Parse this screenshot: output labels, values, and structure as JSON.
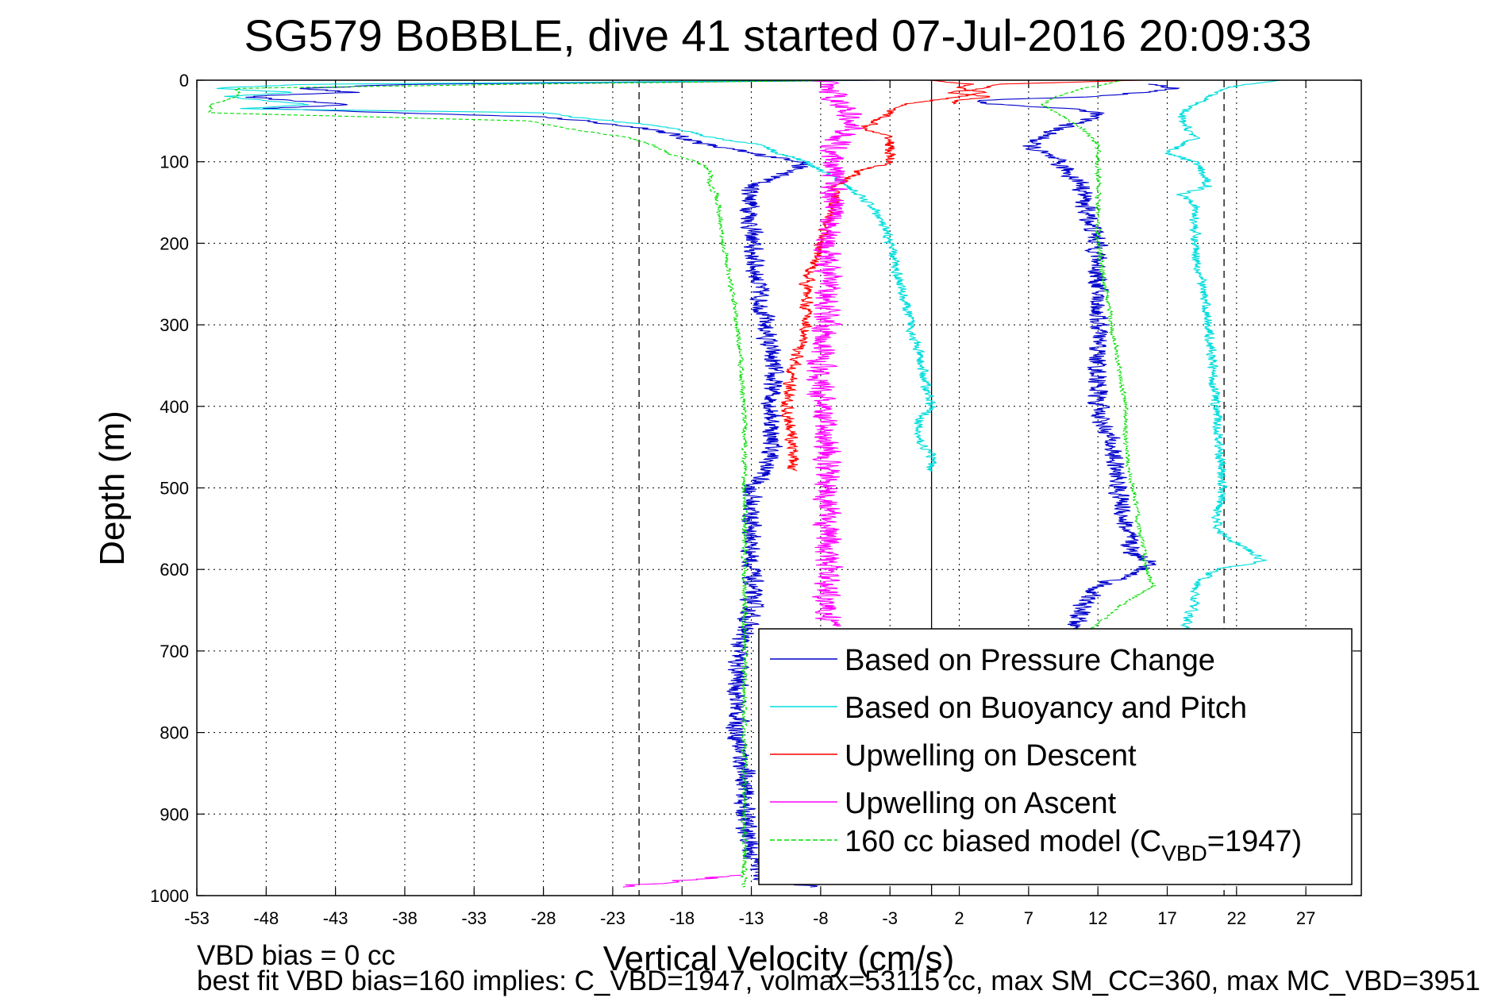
{
  "chart_data": {
    "type": "line",
    "title": "SG579 BoBBLE, dive 41 started 07-Jul-2016 20:09:33",
    "xlabel": "Vertical Velocity (cm/s)",
    "ylabel": "Depth (m)",
    "xlim": [
      -53,
      31
    ],
    "ylim": [
      0,
      1000
    ],
    "y_reversed": true,
    "grid": true,
    "x_ticks": [
      -53,
      -48,
      -43,
      -38,
      -33,
      -28,
      -23,
      -18,
      -13,
      -8,
      -3,
      2,
      7,
      12,
      17,
      22,
      27
    ],
    "y_ticks": [
      0,
      100,
      200,
      300,
      400,
      500,
      600,
      700,
      800,
      900,
      1000
    ],
    "reference_lines": [
      {
        "x": -21.1,
        "style": "dashed",
        "color": "#000000"
      },
      {
        "x": 0,
        "style": "solid",
        "color": "#000000"
      },
      {
        "x": 21.1,
        "style": "dashed",
        "color": "#000000"
      }
    ],
    "legend_position": "bottom-right",
    "series": [
      {
        "name": "Based on Pressure Change",
        "color": "#0000cc",
        "style": "solid",
        "noise": 1.0,
        "segments": [
          {
            "depth": [
              0,
              5,
              10,
              15,
              20,
              25,
              30,
              35,
              45,
              60,
              70,
              80,
              90,
              100,
              110,
              130,
              150,
              200,
              250,
              300,
              350,
              400,
              450,
              480,
              500,
              550,
              600,
              650,
              700,
              750,
              800,
              850,
              900,
              950,
              980,
              990
            ],
            "v": [
              -3,
              -38,
              -45,
              -42,
              -50,
              -46,
              -42,
              -48,
              -28,
              -20,
              -18,
              -16,
              -13,
              -9,
              -10,
              -13,
              -13,
              -13,
              -12.5,
              -12,
              -11.5,
              -11.5,
              -11.5,
              -12,
              -13,
              -13,
              -13,
              -13,
              -14,
              -14,
              -14,
              -13.5,
              -13.5,
              -13,
              -12,
              -8
            ]
          },
          {
            "depth": [
              5,
              10,
              20,
              25,
              30,
              35,
              40,
              50,
              60,
              70,
              80,
              90,
              100,
              130,
              150,
              200,
              300,
              400,
              450,
              500,
              550,
              580,
              590,
              600,
              610,
              620,
              640,
              660,
              680
            ],
            "v": [
              16,
              18,
              12,
              3,
              5,
              10,
              12,
              11,
              9,
              8,
              7,
              8,
              9,
              11,
              11,
              12,
              12,
              12,
              13,
              13.5,
              14,
              14.5,
              16,
              15,
              14,
              12,
              11,
              10.5,
              10
            ]
          }
        ]
      },
      {
        "name": "Based on Buoyancy and Pitch",
        "color": "#00dddd",
        "style": "solid",
        "noise": 0.5,
        "segments": [
          {
            "depth": [
              0,
              5,
              10,
              15,
              20,
              25,
              30,
              35,
              40,
              45,
              50,
              60,
              70,
              80,
              90,
              100,
              130,
              160,
              200,
              300,
              400,
              420,
              440,
              460,
              480
            ],
            "v": [
              -5,
              -45,
              -52,
              -46,
              -51,
              -48,
              -45,
              -50,
              -28,
              -26,
              -23,
              -18,
              -16,
              -12,
              -11,
              -9,
              -6,
              -4,
              -3,
              -1.5,
              0,
              -1,
              -1,
              0,
              0
            ]
          },
          {
            "depth": [
              0,
              10,
              20,
              30,
              40,
              50,
              70,
              80,
              90,
              100,
              130,
              140,
              150,
              200,
              300,
              400,
              500,
              550,
              590,
              600,
              620,
              640,
              660,
              680
            ],
            "v": [
              25,
              21,
              20,
              19,
              18,
              18,
              19,
              18,
              17,
              19,
              20,
              18,
              19,
              19,
              20,
              20.5,
              21,
              20.5,
              24,
              20.5,
              19,
              19,
              18.5,
              18
            ]
          }
        ]
      },
      {
        "name": "Upwelling on Descent",
        "color": "#ff0000",
        "style": "solid",
        "noise": 0.6,
        "segments": [
          {
            "depth": [
              0,
              5,
              10,
              15,
              20,
              30,
              40,
              50,
              60,
              70,
              80,
              90,
              100,
              110,
              130,
              150,
              200,
              250,
              300,
              350,
              400,
              450,
              480
            ],
            "v": [
              0,
              3,
              2,
              4,
              2,
              -2,
              -3,
              -4,
              -5,
              -3,
              -3,
              -3,
              -3,
              -5,
              -7,
              -7,
              -8,
              -9,
              -9,
              -10,
              -10.5,
              -10,
              -10
            ]
          },
          {
            "depth": [
              0,
              5,
              10,
              15,
              20,
              25,
              30
            ],
            "v": [
              15,
              5,
              4,
              1,
              4,
              2,
              1
            ]
          }
        ]
      },
      {
        "name": "Upwelling on Ascent",
        "color": "#ff00ff",
        "style": "solid",
        "noise": 1.3,
        "segments": [
          {
            "depth": [
              0,
              20,
              40,
              60,
              80,
              100,
              120,
              150,
              200,
              250,
              300,
              350,
              400,
              450,
              500,
              550,
              600,
              650,
              670
            ],
            "v": [
              -8,
              -7,
              -6,
              -6,
              -7,
              -7,
              -7,
              -7,
              -7.5,
              -7.5,
              -7.5,
              -8,
              -8,
              -7.5,
              -7.5,
              -7.5,
              -7.5,
              -7.5,
              -7.5
            ]
          },
          {
            "depth": [
              975,
              980,
              985,
              990
            ],
            "v": [
              -13,
              -17,
              -20,
              -23
            ]
          }
        ]
      },
      {
        "name": "160 cc biased model (CVBD=1947)",
        "legend_label_main": "160 cc biased model (C",
        "legend_label_sub": "VBD",
        "legend_label_end": "=1947)",
        "color": "#00dd00",
        "style": "dashed",
        "noise": 0.25,
        "segments": [
          {
            "depth": [
              0,
              5,
              10,
              20,
              30,
              40,
              50,
              60,
              70,
              80,
              90,
              100,
              110,
              130,
              140,
              200,
              300,
              400,
              480,
              500,
              600,
              650,
              700,
              800,
              900,
              990
            ],
            "v": [
              -5,
              -30,
              -50,
              -50,
              -52,
              -52,
              -29,
              -26,
              -22,
              -20,
              -19,
              -17,
              -16,
              -16,
              -15.5,
              -15,
              -14,
              -13.5,
              -13.5,
              -13.5,
              -13.5,
              -13.5,
              -13.5,
              -13.5,
              -13.5,
              -13.5
            ]
          },
          {
            "depth": [
              0,
              10,
              20,
              30,
              40,
              50,
              60,
              80,
              100,
              150,
              200,
              300,
              400,
              450,
              500,
              550,
              600,
              620,
              640,
              680
            ],
            "v": [
              14,
              11,
              9,
              8,
              9,
              10,
              11,
              12,
              12,
              12,
              12,
              13,
              14,
              14,
              14.5,
              15,
              15.5,
              16,
              14,
              11
            ]
          }
        ]
      }
    ]
  },
  "notes": {
    "line1": "VBD bias = 0 cc",
    "line2": "best fit VBD bias=160 implies: C_VBD=1947, volmax=53115 cc, max SM_CC=360, max MC_VBD=3951"
  }
}
